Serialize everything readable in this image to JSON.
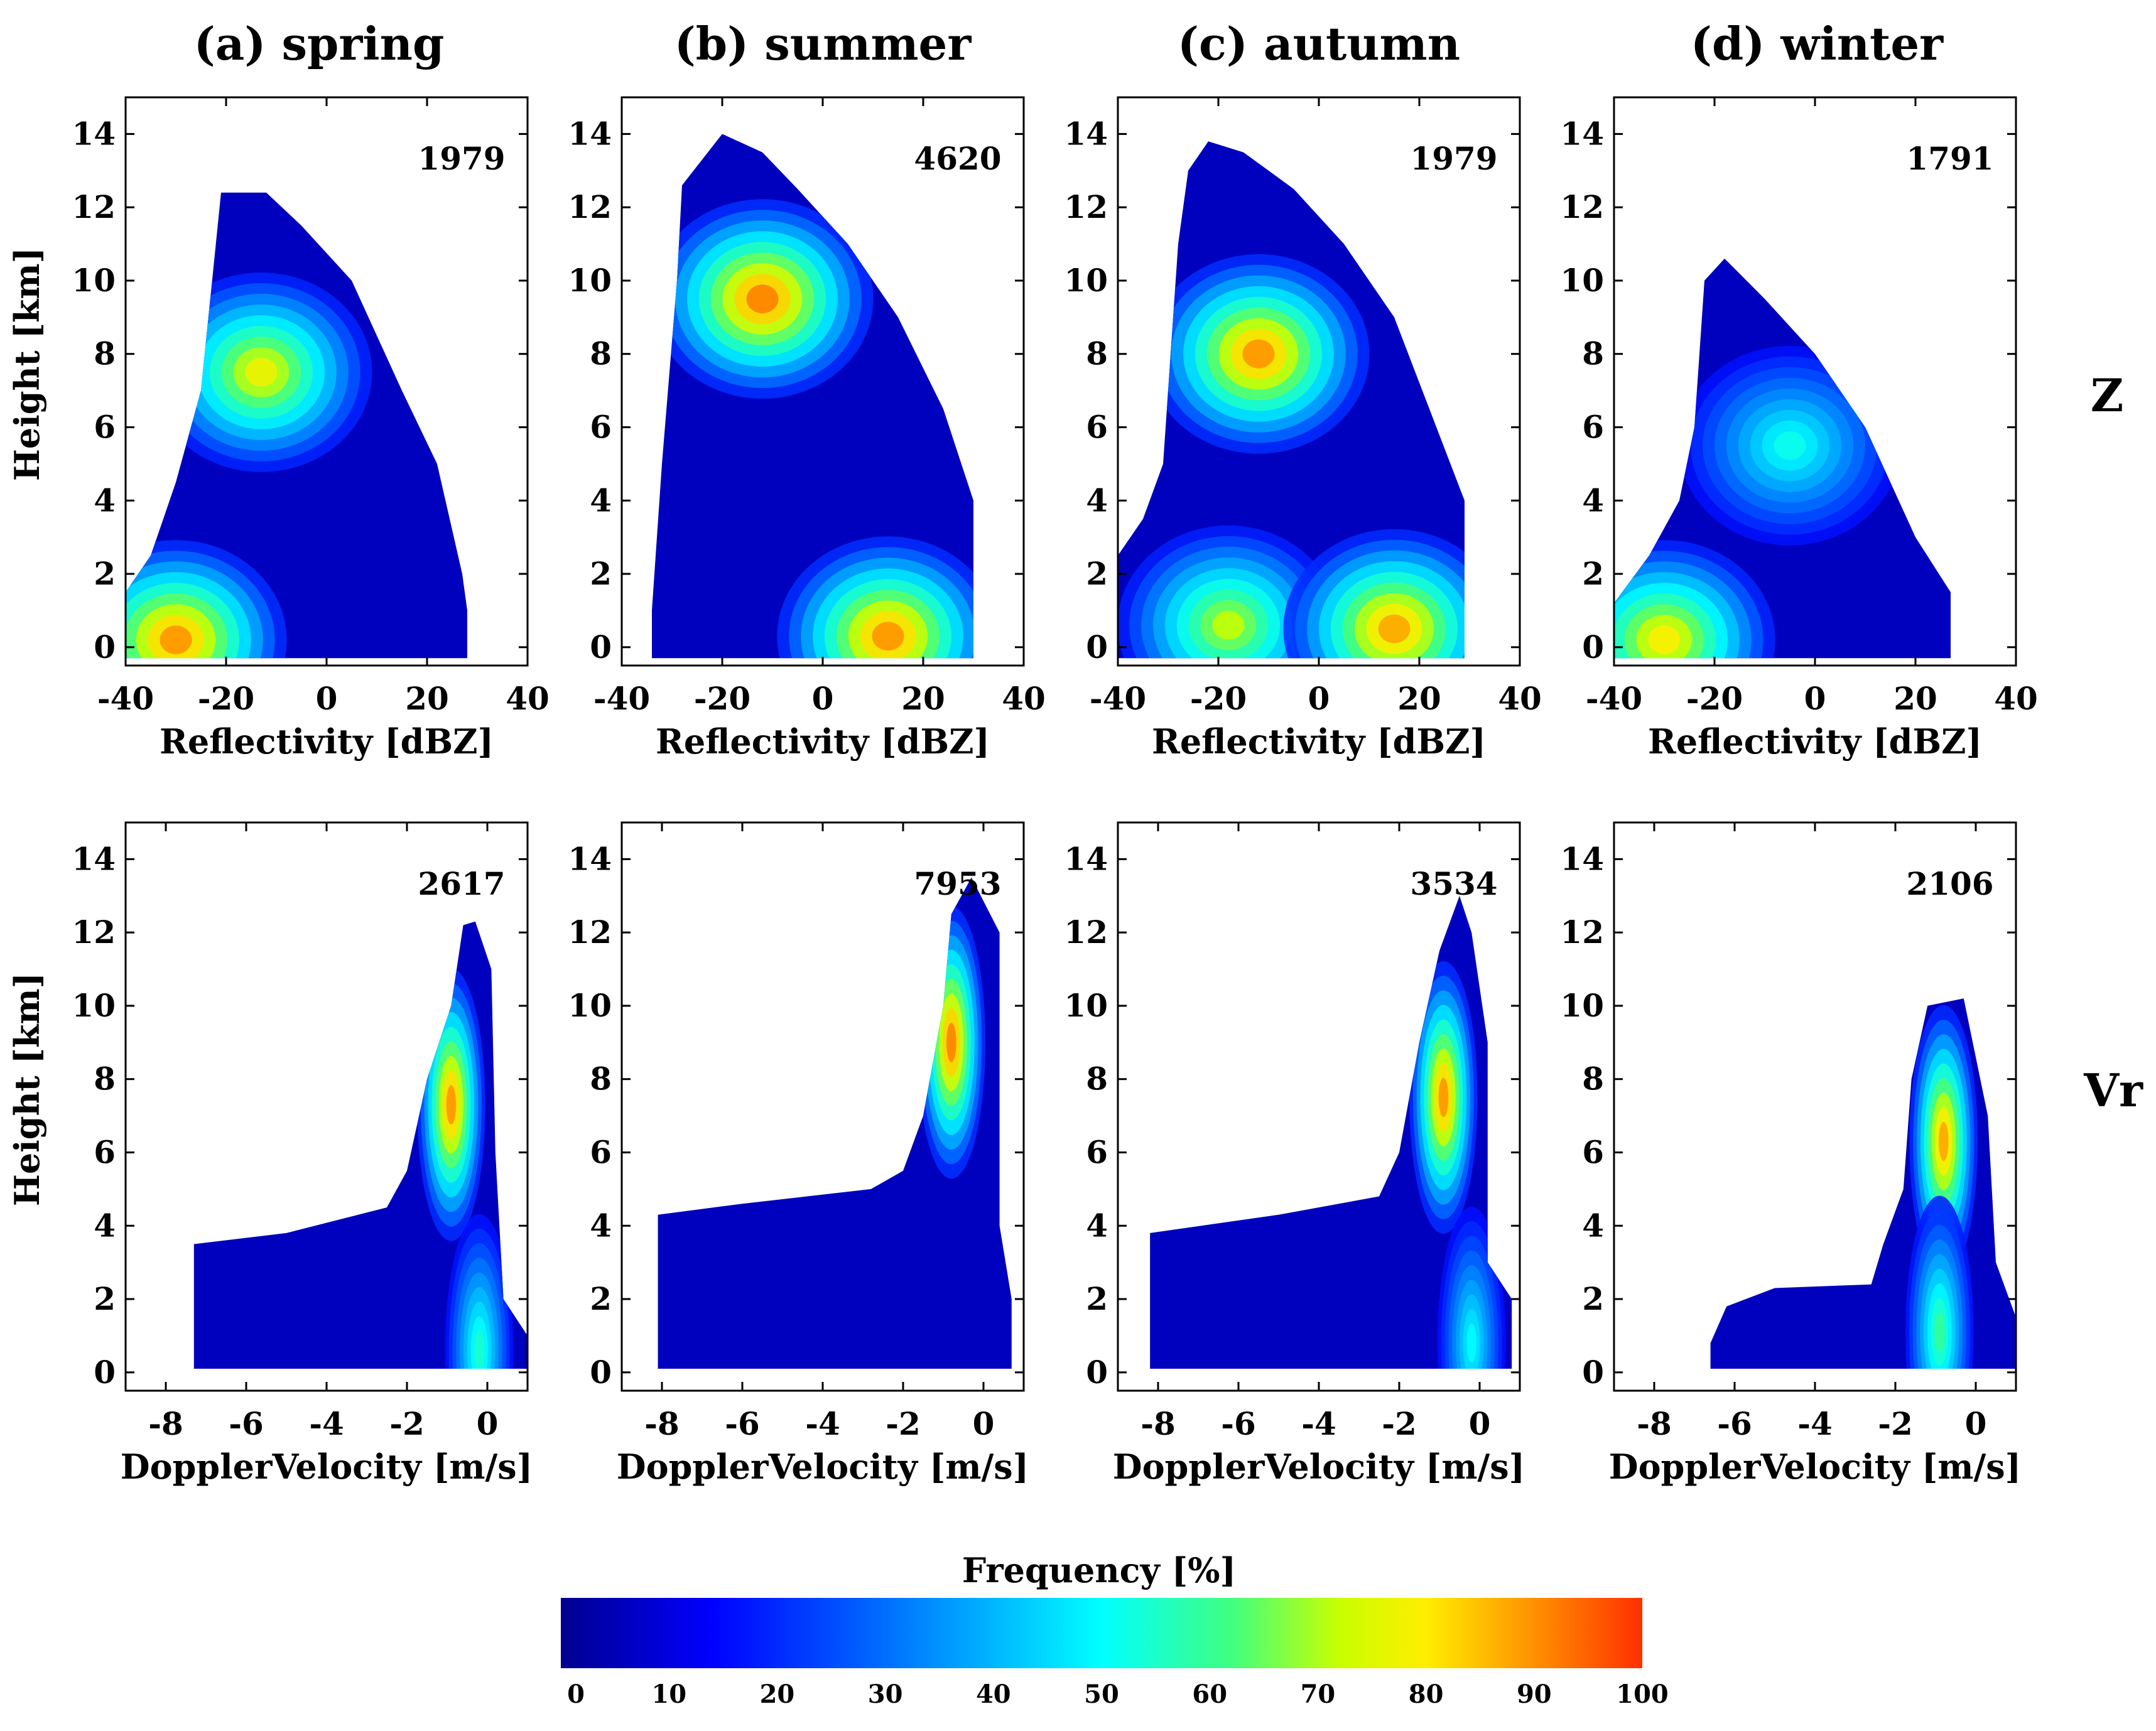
{
  "chart_data": {
    "type": "heatmap",
    "seasons": [
      "(a) spring",
      "(b) summer",
      "(c) autumn",
      "(d) winter"
    ],
    "row_labels": [
      "Z",
      "Vr"
    ],
    "rows": [
      {
        "name": "Z",
        "xlabel": "Reflectivity [dBZ]",
        "ylabel": "Height [km]",
        "xlim": [
          -40,
          40
        ],
        "ylim": [
          -0.5,
          15
        ],
        "xticks": [
          "-40",
          "-20",
          "0",
          "20",
          "40"
        ],
        "yticks": [
          "0",
          "2",
          "4",
          "6",
          "8",
          "10",
          "12",
          "14"
        ],
        "panels": [
          {
            "season": "spring",
            "count": "1979",
            "envelope": [
              [
                -40,
                -0.3
              ],
              [
                -40,
                1.5
              ],
              [
                -35,
                2.5
              ],
              [
                -30,
                4.5
              ],
              [
                -25,
                7
              ],
              [
                -21,
                12.4
              ],
              [
                -12,
                12.4
              ],
              [
                -5,
                11.5
              ],
              [
                5,
                10
              ],
              [
                15,
                7
              ],
              [
                22,
                5
              ],
              [
                27,
                2
              ],
              [
                28,
                1
              ],
              [
                28,
                -0.3
              ]
            ],
            "peaks": [
              [
                -13,
                7.5,
                0.78
              ],
              [
                -30,
                0.2,
                0.9
              ]
            ]
          },
          {
            "season": "summer",
            "count": "4620",
            "envelope": [
              [
                -34,
                -0.3
              ],
              [
                -34,
                1
              ],
              [
                -33,
                3
              ],
              [
                -32,
                5
              ],
              [
                -29,
                10
              ],
              [
                -28,
                12.6
              ],
              [
                -20,
                14
              ],
              [
                -12,
                13.5
              ],
              [
                -5,
                12.5
              ],
              [
                5,
                11
              ],
              [
                15,
                9
              ],
              [
                24,
                6.5
              ],
              [
                30,
                4
              ],
              [
                30,
                -0.3
              ]
            ],
            "peaks": [
              [
                -12,
                9.5,
                0.92
              ],
              [
                13,
                0.3,
                0.9
              ]
            ]
          },
          {
            "season": "autumn",
            "count": "1979",
            "envelope": [
              [
                -40,
                -0.3
              ],
              [
                -40,
                2.5
              ],
              [
                -35,
                3.5
              ],
              [
                -31,
                5
              ],
              [
                -28,
                11
              ],
              [
                -26,
                13
              ],
              [
                -22,
                13.8
              ],
              [
                -15,
                13.5
              ],
              [
                -5,
                12.5
              ],
              [
                5,
                11
              ],
              [
                15,
                9
              ],
              [
                22,
                6.5
              ],
              [
                29,
                4
              ],
              [
                29,
                -0.3
              ]
            ],
            "peaks": [
              [
                -12,
                8,
                0.9
              ],
              [
                -18,
                0.6,
                0.72
              ],
              [
                15,
                0.5,
                0.88
              ]
            ]
          },
          {
            "season": "winter",
            "count": "1791",
            "envelope": [
              [
                -40,
                -0.3
              ],
              [
                -40,
                1.2
              ],
              [
                -33,
                2.5
              ],
              [
                -27,
                4
              ],
              [
                -24,
                6
              ],
              [
                -22,
                10
              ],
              [
                -18,
                10.6
              ],
              [
                -10,
                9.5
              ],
              [
                0,
                8
              ],
              [
                10,
                6
              ],
              [
                20,
                3
              ],
              [
                27,
                1.5
              ],
              [
                27,
                -0.3
              ]
            ],
            "peaks": [
              [
                -5,
                5.5,
                0.52
              ],
              [
                -30,
                0.2,
                0.8
              ]
            ]
          }
        ]
      },
      {
        "name": "Vr",
        "xlabel": "DopplerVelocity [m/s]",
        "ylabel": "Height [km]",
        "xlim": [
          -9,
          1
        ],
        "ylim": [
          -0.5,
          15
        ],
        "xticks": [
          "-8",
          "-6",
          "-4",
          "-2",
          "0"
        ],
        "yticks": [
          "0",
          "2",
          "4",
          "6",
          "8",
          "10",
          "12",
          "14"
        ],
        "panels": [
          {
            "season": "spring",
            "count": "2617",
            "envelope": [
              [
                -7.3,
                0.1
              ],
              [
                -7.3,
                3.5
              ],
              [
                -5,
                3.8
              ],
              [
                -2.5,
                4.5
              ],
              [
                -2,
                5.5
              ],
              [
                -1.5,
                8
              ],
              [
                -0.9,
                10
              ],
              [
                -0.6,
                12.2
              ],
              [
                -0.3,
                12.3
              ],
              [
                0.1,
                11
              ],
              [
                0.2,
                6
              ],
              [
                0.4,
                2
              ],
              [
                1,
                1
              ],
              [
                1,
                0.1
              ]
            ],
            "peaks": [
              [
                -0.9,
                7.3,
                0.9
              ],
              [
                -0.2,
                0.6,
                0.55
              ]
            ]
          },
          {
            "season": "summer",
            "count": "7953",
            "envelope": [
              [
                -8.1,
                0.1
              ],
              [
                -8.1,
                4.3
              ],
              [
                -6,
                4.6
              ],
              [
                -2.8,
                5
              ],
              [
                -2,
                5.5
              ],
              [
                -1.5,
                7
              ],
              [
                -1,
                10
              ],
              [
                -0.8,
                12.5
              ],
              [
                -0.3,
                13.5
              ],
              [
                0.4,
                12
              ],
              [
                0.4,
                4
              ],
              [
                0.7,
                2
              ],
              [
                0.7,
                0.1
              ]
            ],
            "peaks": [
              [
                -0.8,
                9,
                0.92
              ]
            ]
          },
          {
            "season": "autumn",
            "count": "3534",
            "envelope": [
              [
                -8.2,
                0.1
              ],
              [
                -8.2,
                3.8
              ],
              [
                -5,
                4.3
              ],
              [
                -2.5,
                4.8
              ],
              [
                -2,
                6
              ],
              [
                -1.5,
                9
              ],
              [
                -1,
                11.5
              ],
              [
                -0.5,
                13
              ],
              [
                -0.2,
                12
              ],
              [
                0.2,
                9
              ],
              [
                0.2,
                3
              ],
              [
                0.8,
                2
              ],
              [
                0.8,
                0.1
              ]
            ],
            "peaks": [
              [
                -0.9,
                7.5,
                0.9
              ],
              [
                -0.2,
                0.8,
                0.5
              ]
            ]
          },
          {
            "season": "winter",
            "count": "2106",
            "envelope": [
              [
                -6.6,
                0.1
              ],
              [
                -6.6,
                0.8
              ],
              [
                -6.2,
                1.8
              ],
              [
                -5,
                2.3
              ],
              [
                -2.6,
                2.4
              ],
              [
                -2.3,
                3.5
              ],
              [
                -1.8,
                5
              ],
              [
                -1.6,
                8
              ],
              [
                -1.2,
                10
              ],
              [
                -0.3,
                10.2
              ],
              [
                0.3,
                7
              ],
              [
                0.5,
                3
              ],
              [
                1,
                1.5
              ],
              [
                1,
                0.1
              ]
            ],
            "peaks": [
              [
                -0.8,
                6.3,
                0.88
              ],
              [
                -0.9,
                1.1,
                0.6
              ]
            ]
          }
        ]
      }
    ],
    "colorbar": {
      "title": "Frequency [%]",
      "range": [
        0,
        100
      ],
      "ticks": [
        "0",
        "10",
        "20",
        "30",
        "40",
        "50",
        "60",
        "70",
        "80",
        "90",
        "100"
      ],
      "colormap": [
        "#00008f",
        "#0000ff",
        "#0080ff",
        "#00ffff",
        "#80ff80",
        "#ffff00",
        "#ff8000",
        "#ff2000"
      ]
    }
  }
}
